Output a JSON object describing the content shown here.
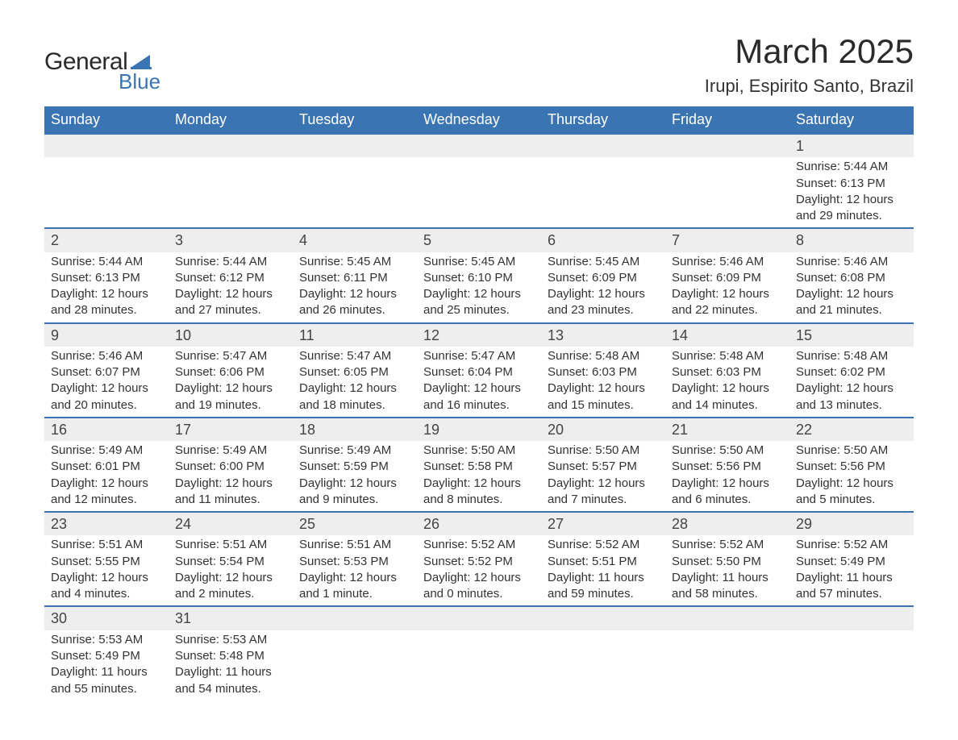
{
  "logo": {
    "general": "General",
    "blue": "Blue",
    "sail_color": "#3b74b3"
  },
  "header": {
    "title": "March 2025",
    "location": "Irupi, Espirito Santo, Brazil"
  },
  "style": {
    "header_bg": "#3b74b3",
    "header_text": "#ffffff",
    "daynum_bg": "#eeeeee",
    "row_divider": "#3b74b3",
    "text_color": "#333333",
    "page_bg": "#ffffff",
    "title_fontsize": 42,
    "subtitle_fontsize": 22,
    "th_fontsize": 18,
    "cell_fontsize": 15
  },
  "weekdays": [
    "Sunday",
    "Monday",
    "Tuesday",
    "Wednesday",
    "Thursday",
    "Friday",
    "Saturday"
  ],
  "weeks": [
    [
      null,
      null,
      null,
      null,
      null,
      null,
      {
        "d": "1",
        "sr": "Sunrise: 5:44 AM",
        "ss": "Sunset: 6:13 PM",
        "dl1": "Daylight: 12 hours",
        "dl2": "and 29 minutes."
      }
    ],
    [
      {
        "d": "2",
        "sr": "Sunrise: 5:44 AM",
        "ss": "Sunset: 6:13 PM",
        "dl1": "Daylight: 12 hours",
        "dl2": "and 28 minutes."
      },
      {
        "d": "3",
        "sr": "Sunrise: 5:44 AM",
        "ss": "Sunset: 6:12 PM",
        "dl1": "Daylight: 12 hours",
        "dl2": "and 27 minutes."
      },
      {
        "d": "4",
        "sr": "Sunrise: 5:45 AM",
        "ss": "Sunset: 6:11 PM",
        "dl1": "Daylight: 12 hours",
        "dl2": "and 26 minutes."
      },
      {
        "d": "5",
        "sr": "Sunrise: 5:45 AM",
        "ss": "Sunset: 6:10 PM",
        "dl1": "Daylight: 12 hours",
        "dl2": "and 25 minutes."
      },
      {
        "d": "6",
        "sr": "Sunrise: 5:45 AM",
        "ss": "Sunset: 6:09 PM",
        "dl1": "Daylight: 12 hours",
        "dl2": "and 23 minutes."
      },
      {
        "d": "7",
        "sr": "Sunrise: 5:46 AM",
        "ss": "Sunset: 6:09 PM",
        "dl1": "Daylight: 12 hours",
        "dl2": "and 22 minutes."
      },
      {
        "d": "8",
        "sr": "Sunrise: 5:46 AM",
        "ss": "Sunset: 6:08 PM",
        "dl1": "Daylight: 12 hours",
        "dl2": "and 21 minutes."
      }
    ],
    [
      {
        "d": "9",
        "sr": "Sunrise: 5:46 AM",
        "ss": "Sunset: 6:07 PM",
        "dl1": "Daylight: 12 hours",
        "dl2": "and 20 minutes."
      },
      {
        "d": "10",
        "sr": "Sunrise: 5:47 AM",
        "ss": "Sunset: 6:06 PM",
        "dl1": "Daylight: 12 hours",
        "dl2": "and 19 minutes."
      },
      {
        "d": "11",
        "sr": "Sunrise: 5:47 AM",
        "ss": "Sunset: 6:05 PM",
        "dl1": "Daylight: 12 hours",
        "dl2": "and 18 minutes."
      },
      {
        "d": "12",
        "sr": "Sunrise: 5:47 AM",
        "ss": "Sunset: 6:04 PM",
        "dl1": "Daylight: 12 hours",
        "dl2": "and 16 minutes."
      },
      {
        "d": "13",
        "sr": "Sunrise: 5:48 AM",
        "ss": "Sunset: 6:03 PM",
        "dl1": "Daylight: 12 hours",
        "dl2": "and 15 minutes."
      },
      {
        "d": "14",
        "sr": "Sunrise: 5:48 AM",
        "ss": "Sunset: 6:03 PM",
        "dl1": "Daylight: 12 hours",
        "dl2": "and 14 minutes."
      },
      {
        "d": "15",
        "sr": "Sunrise: 5:48 AM",
        "ss": "Sunset: 6:02 PM",
        "dl1": "Daylight: 12 hours",
        "dl2": "and 13 minutes."
      }
    ],
    [
      {
        "d": "16",
        "sr": "Sunrise: 5:49 AM",
        "ss": "Sunset: 6:01 PM",
        "dl1": "Daylight: 12 hours",
        "dl2": "and 12 minutes."
      },
      {
        "d": "17",
        "sr": "Sunrise: 5:49 AM",
        "ss": "Sunset: 6:00 PM",
        "dl1": "Daylight: 12 hours",
        "dl2": "and 11 minutes."
      },
      {
        "d": "18",
        "sr": "Sunrise: 5:49 AM",
        "ss": "Sunset: 5:59 PM",
        "dl1": "Daylight: 12 hours",
        "dl2": "and 9 minutes."
      },
      {
        "d": "19",
        "sr": "Sunrise: 5:50 AM",
        "ss": "Sunset: 5:58 PM",
        "dl1": "Daylight: 12 hours",
        "dl2": "and 8 minutes."
      },
      {
        "d": "20",
        "sr": "Sunrise: 5:50 AM",
        "ss": "Sunset: 5:57 PM",
        "dl1": "Daylight: 12 hours",
        "dl2": "and 7 minutes."
      },
      {
        "d": "21",
        "sr": "Sunrise: 5:50 AM",
        "ss": "Sunset: 5:56 PM",
        "dl1": "Daylight: 12 hours",
        "dl2": "and 6 minutes."
      },
      {
        "d": "22",
        "sr": "Sunrise: 5:50 AM",
        "ss": "Sunset: 5:56 PM",
        "dl1": "Daylight: 12 hours",
        "dl2": "and 5 minutes."
      }
    ],
    [
      {
        "d": "23",
        "sr": "Sunrise: 5:51 AM",
        "ss": "Sunset: 5:55 PM",
        "dl1": "Daylight: 12 hours",
        "dl2": "and 4 minutes."
      },
      {
        "d": "24",
        "sr": "Sunrise: 5:51 AM",
        "ss": "Sunset: 5:54 PM",
        "dl1": "Daylight: 12 hours",
        "dl2": "and 2 minutes."
      },
      {
        "d": "25",
        "sr": "Sunrise: 5:51 AM",
        "ss": "Sunset: 5:53 PM",
        "dl1": "Daylight: 12 hours",
        "dl2": "and 1 minute."
      },
      {
        "d": "26",
        "sr": "Sunrise: 5:52 AM",
        "ss": "Sunset: 5:52 PM",
        "dl1": "Daylight: 12 hours",
        "dl2": "and 0 minutes."
      },
      {
        "d": "27",
        "sr": "Sunrise: 5:52 AM",
        "ss": "Sunset: 5:51 PM",
        "dl1": "Daylight: 11 hours",
        "dl2": "and 59 minutes."
      },
      {
        "d": "28",
        "sr": "Sunrise: 5:52 AM",
        "ss": "Sunset: 5:50 PM",
        "dl1": "Daylight: 11 hours",
        "dl2": "and 58 minutes."
      },
      {
        "d": "29",
        "sr": "Sunrise: 5:52 AM",
        "ss": "Sunset: 5:49 PM",
        "dl1": "Daylight: 11 hours",
        "dl2": "and 57 minutes."
      }
    ],
    [
      {
        "d": "30",
        "sr": "Sunrise: 5:53 AM",
        "ss": "Sunset: 5:49 PM",
        "dl1": "Daylight: 11 hours",
        "dl2": "and 55 minutes."
      },
      {
        "d": "31",
        "sr": "Sunrise: 5:53 AM",
        "ss": "Sunset: 5:48 PM",
        "dl1": "Daylight: 11 hours",
        "dl2": "and 54 minutes."
      },
      null,
      null,
      null,
      null,
      null
    ]
  ]
}
